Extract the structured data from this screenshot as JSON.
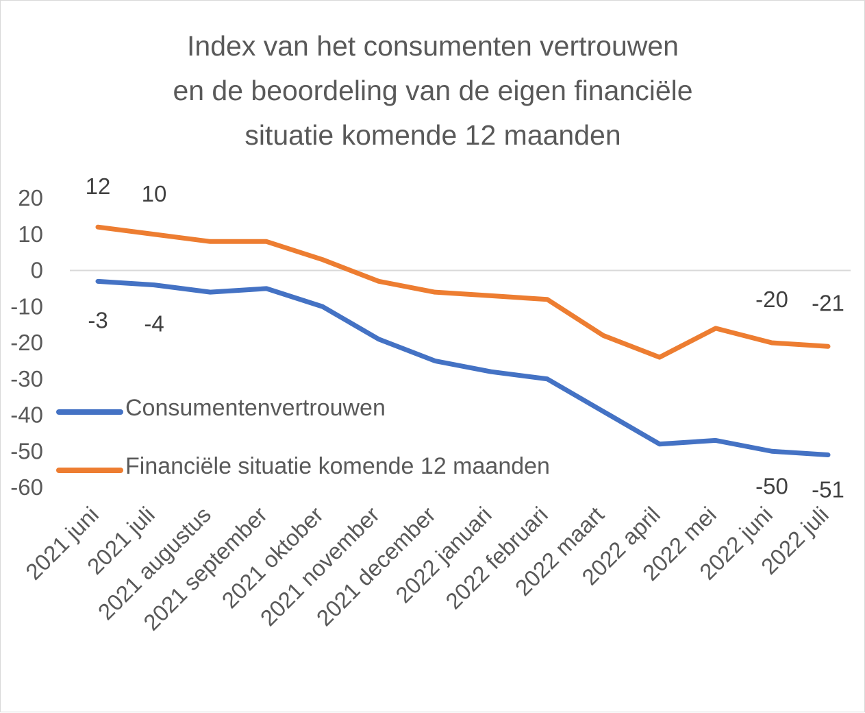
{
  "chart_data": {
    "type": "line",
    "title_lines": [
      "Index van het consumenten vertrouwen",
      "en de beoordeling van de eigen financiële",
      "situatie komende 12 maanden"
    ],
    "categories": [
      "2021 juni",
      "2021 juli",
      "2021 augustus",
      "2021 september",
      "2021 oktober",
      "2021 november",
      "2021 december",
      "2022 januari",
      "2022 februari",
      "2022 maart",
      "2022 april",
      "2022 mei",
      "2022 juni",
      "2022 juli"
    ],
    "series": [
      {
        "name": "Consumentenvertrouwen",
        "color": "#4472C4",
        "values": [
          -3,
          -4,
          -6,
          -5,
          -10,
          -19,
          -25,
          -28,
          -30,
          -39,
          -48,
          -47,
          -50,
          -51
        ],
        "labels": [
          {
            "index": 0,
            "text": "-3"
          },
          {
            "index": 1,
            "text": "-4"
          },
          {
            "index": 12,
            "text": "-50"
          },
          {
            "index": 13,
            "text": "-51"
          }
        ]
      },
      {
        "name": "Financiële situatie komende 12 maanden",
        "color": "#ED7D31",
        "values": [
          12,
          10,
          8,
          8,
          3,
          -3,
          -6,
          -7,
          -8,
          -18,
          -24,
          -16,
          -20,
          -21
        ],
        "labels": [
          {
            "index": 0,
            "text": "12"
          },
          {
            "index": 1,
            "text": "10"
          },
          {
            "index": 12,
            "text": "-20"
          },
          {
            "index": 13,
            "text": "-21"
          }
        ]
      }
    ],
    "y_ticks": [
      "20",
      "10",
      "0",
      "-10",
      "-20",
      "-30",
      "-40",
      "-50",
      "-60"
    ],
    "ylim": [
      -60,
      20
    ],
    "grid": false,
    "legend_position": "left"
  }
}
